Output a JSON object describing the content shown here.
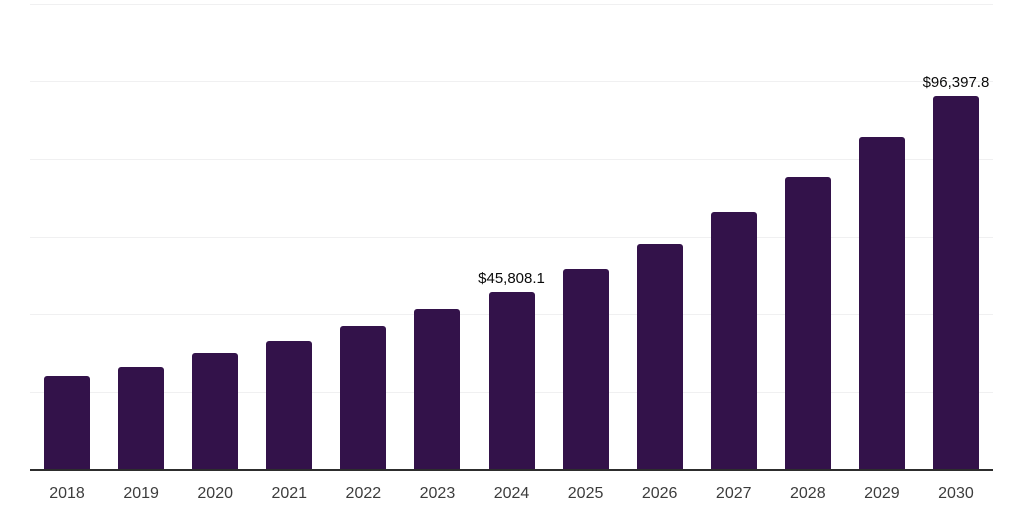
{
  "chart_data": {
    "type": "bar",
    "title": "",
    "xlabel": "",
    "ylabel": "",
    "categories": [
      "2018",
      "2019",
      "2020",
      "2021",
      "2022",
      "2023",
      "2024",
      "2025",
      "2026",
      "2027",
      "2028",
      "2029",
      "2030"
    ],
    "values": [
      24200,
      26600,
      30100,
      33300,
      37100,
      41500,
      45808.1,
      51700,
      58200,
      66400,
      75400,
      85700,
      96397.8
    ],
    "data_labels": [
      {
        "category": "2024",
        "text": "$45,808.1"
      },
      {
        "category": "2030",
        "text": "$96,397.8"
      }
    ],
    "ylim": [
      0,
      120000
    ],
    "gridline_step": 20000,
    "grid": true,
    "y_axis_labels_visible": false,
    "legend": "none"
  },
  "colors": {
    "background": "#ffffff",
    "bar": "#33124a",
    "gridline": "#f0f0f1",
    "axis": "#2d2d2d",
    "tick_text": "#3c3c3c",
    "label_text": "#0a0a0a"
  }
}
